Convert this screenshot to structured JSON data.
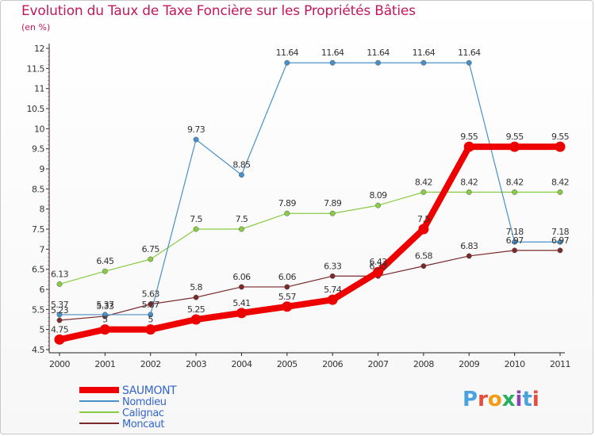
{
  "title": "Evolution du Taux de Taxe Foncière sur les Propriétés Bâties",
  "subtitle": "(en %)",
  "logo": {
    "text": "Proxiti"
  },
  "colors": {
    "title": "#c2185b",
    "legend_text": "#3366cc",
    "logo": [
      "#4aa3df",
      "#e74c3c",
      "#f39c12",
      "#27ae60",
      "#8e44ad"
    ]
  },
  "chart_data": {
    "type": "line",
    "x": [
      "2000",
      "2001",
      "2002",
      "2003",
      "2004",
      "2005",
      "2006",
      "2007",
      "2008",
      "2009",
      "2010",
      "2011"
    ],
    "ylim": [
      4.5,
      12
    ],
    "yticks": [
      "4.5",
      "5",
      "5.5",
      "6",
      "6.5",
      "7",
      "7.5",
      "8",
      "8.5",
      "9",
      "9.5",
      "10",
      "10.5",
      "11",
      "11.5",
      "12"
    ],
    "grid": false,
    "legend": "bottom-left",
    "series": [
      {
        "name": "SAUMONT",
        "color": "#ee0000",
        "values": [
          4.75,
          5,
          5,
          5.25,
          5.41,
          5.57,
          5.74,
          6.43,
          7.5,
          9.55,
          9.55,
          9.55
        ],
        "labels": [
          "4.75",
          "5",
          "5",
          "5.25",
          "5.41",
          "5.57",
          "5.74",
          "6.43",
          "7.5",
          "9.55",
          "9.55",
          "9.55"
        ]
      },
      {
        "name": "Nomdieu",
        "color": "#4a90c8",
        "values": [
          5.37,
          5.37,
          5.37,
          9.73,
          8.85,
          11.64,
          11.64,
          11.64,
          11.64,
          11.64,
          7.18,
          7.18
        ],
        "labels": [
          "5.37",
          "5.37",
          "5.37",
          "9.73",
          "8.85",
          "11.64",
          "11.64",
          "11.64",
          "11.64",
          "11.64",
          "7.18",
          "7.18"
        ]
      },
      {
        "name": "Calignac",
        "color": "#88cc44",
        "values": [
          6.13,
          6.45,
          6.75,
          7.5,
          7.5,
          7.89,
          7.89,
          8.09,
          8.42,
          8.42,
          8.42,
          8.42
        ],
        "labels": [
          "6.13",
          "6.45",
          "6.75",
          "7.5",
          "7.5",
          "7.89",
          "7.89",
          "8.09",
          "8.42",
          "8.42",
          "8.42",
          "8.42"
        ]
      },
      {
        "name": "Moncaut",
        "color": "#7a2a2a",
        "values": [
          5.23,
          5.33,
          5.63,
          5.8,
          6.06,
          6.06,
          6.33,
          6.33,
          6.58,
          6.83,
          6.97,
          6.97
        ],
        "labels": [
          "5.23",
          "5.33",
          "5.63",
          "5.8",
          "6.06",
          "6.06",
          "6.33",
          "6.33",
          "6.58",
          "6.83",
          "6.97",
          "6.97"
        ]
      }
    ]
  }
}
